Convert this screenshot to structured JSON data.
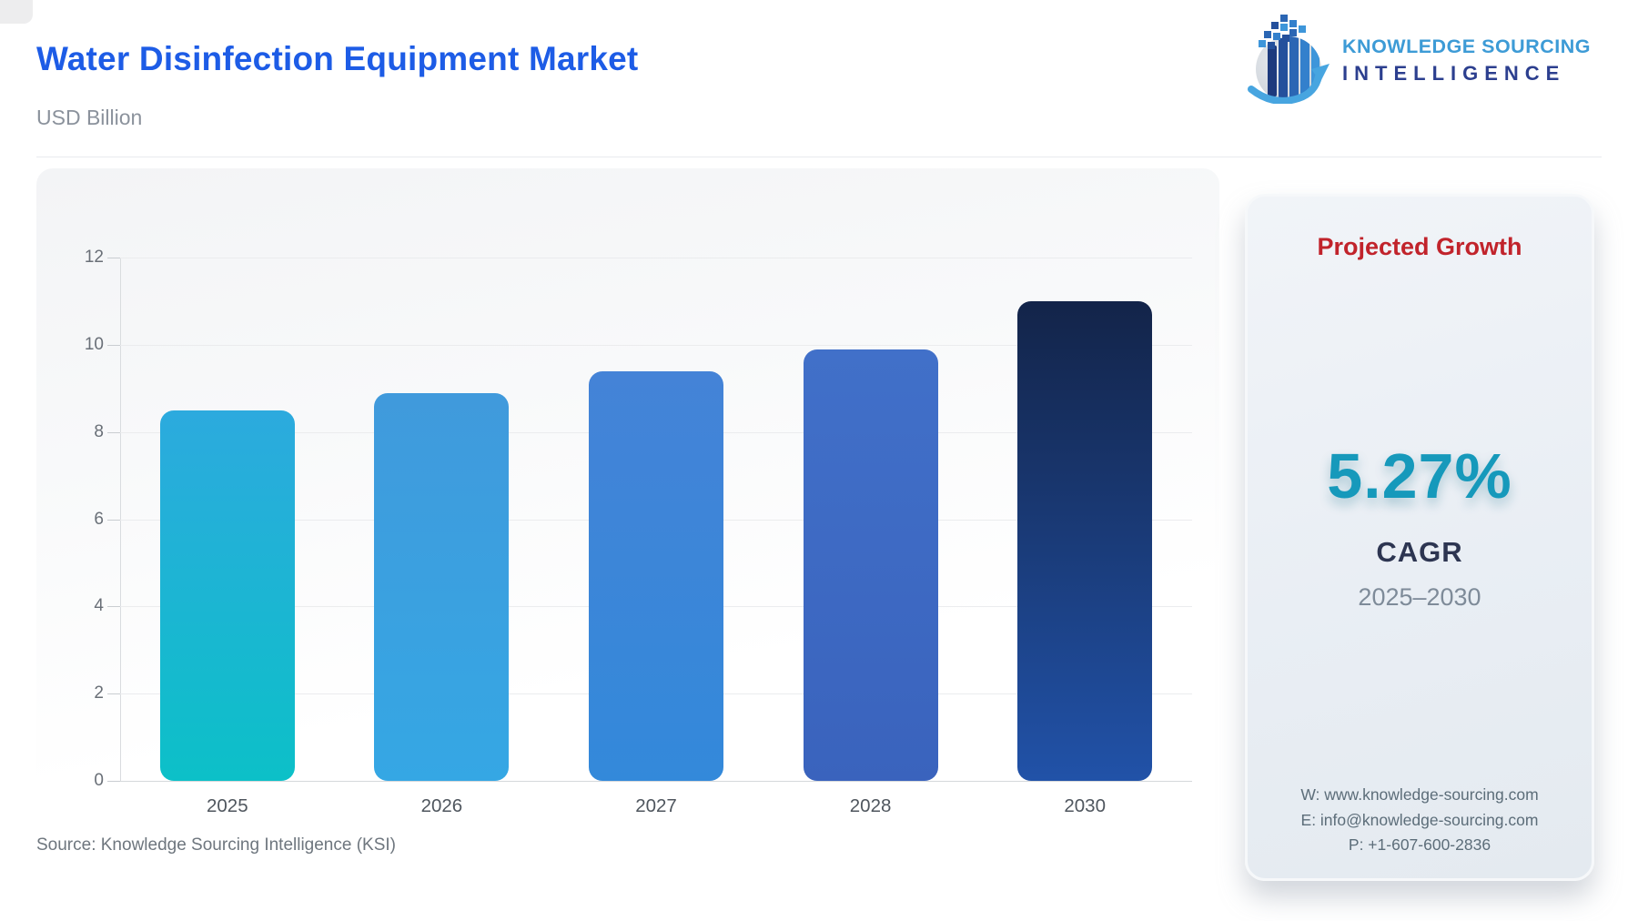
{
  "header": {
    "title": "Water Disinfection Equipment Market",
    "subtitle": "USD Billion"
  },
  "logo": {
    "line1": "KNOWLEDGE SOURCING",
    "line2": "INTELLIGENCE"
  },
  "chart_data": {
    "type": "bar",
    "title": "Water Disinfection Equipment Market",
    "unit": "USD Billion",
    "categories": [
      "2025",
      "2026",
      "2027",
      "2028",
      "2030"
    ],
    "values": [
      8.5,
      8.9,
      9.4,
      9.9,
      11.0
    ],
    "ylim": [
      0,
      12
    ],
    "yticks": [
      0,
      2,
      4,
      6,
      8,
      10,
      12
    ],
    "grid": "horizontal",
    "legend": "none",
    "bar_gradients": [
      [
        "#2caade",
        "#0cc0c8"
      ],
      [
        "#409adc",
        "#35a7e4"
      ],
      [
        "#4483d7",
        "#3389da"
      ],
      [
        "#4170c9",
        "#3a63bd"
      ],
      [
        "#132449",
        "#2152a8"
      ]
    ]
  },
  "panel": {
    "title": "Projected Growth",
    "value": "5.27%",
    "metric_label": "CAGR",
    "period": "2025–2030",
    "contact": {
      "website": "W: www.knowledge-sourcing.com",
      "email": "E: info@knowledge-sourcing.com",
      "phone": "P: +1-607-600-2836"
    }
  },
  "footer": {
    "source": "Source: Knowledge Sourcing Intelligence (KSI)"
  },
  "colors": {
    "title_blue": "#1d5ce6",
    "panel_red": "#c1232b",
    "panel_teal": "#1699bb",
    "logo_light_blue": "#3d9bd6",
    "logo_dark_blue": "#2c3f8f"
  }
}
